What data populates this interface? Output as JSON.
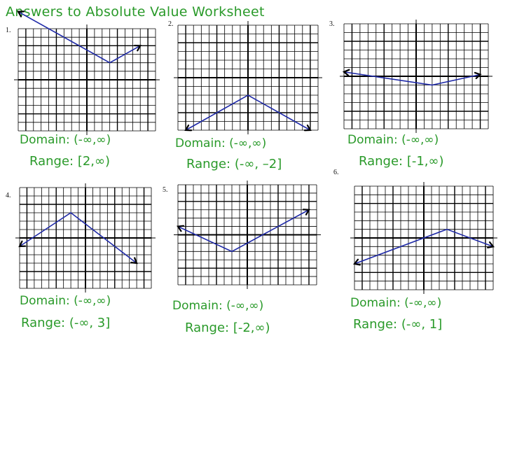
{
  "title": "Answers to Absolute Value Worksheet",
  "problems": [
    {
      "number": "1.",
      "domain": "Domain: (-∞,∞)",
      "range": "Range:  [2,∞)",
      "graph": {
        "xlim": [
          -9,
          9
        ],
        "ylim": [
          -6,
          6
        ],
        "vertex": [
          3,
          2
        ],
        "left": [
          -9,
          8
        ],
        "right": [
          7,
          4
        ],
        "dir": "up"
      }
    },
    {
      "number": "2.",
      "domain": "Domain: (-∞,∞)",
      "range": "Range:  (-∞, –2]",
      "graph": {
        "xlim": [
          -9,
          9
        ],
        "ylim": [
          -6,
          6
        ],
        "vertex": [
          0,
          -2
        ],
        "left": [
          -8,
          -6
        ],
        "right": [
          8,
          -6
        ],
        "dir": "down"
      }
    },
    {
      "number": "3.",
      "domain": "Domain: (-∞,∞)",
      "range": "Range:  [-1,∞)",
      "graph": {
        "xlim": [
          -9,
          9
        ],
        "ylim": [
          -6,
          6
        ],
        "vertex": [
          2,
          -1
        ],
        "left": [
          -9,
          0.5
        ],
        "right": [
          8,
          0.2
        ],
        "dir": "up"
      }
    },
    {
      "number": "4.",
      "domain": "Domain: (-∞,∞)",
      "range": "Range:  (-∞, 3]",
      "graph": {
        "xlim": [
          -9,
          9
        ],
        "ylim": [
          -6,
          6
        ],
        "vertex": [
          -2,
          3
        ],
        "left": [
          -9,
          -1
        ],
        "right": [
          7,
          -3
        ],
        "dir": "down"
      }
    },
    {
      "number": "5.",
      "domain": "Domain: (-∞,∞)",
      "range": "Range:  [-2,∞)",
      "graph": {
        "xlim": [
          -9,
          9
        ],
        "ylim": [
          -6,
          6
        ],
        "vertex": [
          -2,
          -2
        ],
        "left": [
          -9,
          1
        ],
        "right": [
          8,
          3
        ],
        "dir": "up"
      }
    },
    {
      "number": "6.",
      "domain": "Domain: (-∞,∞)",
      "range": "Range:  (-∞, 1]",
      "graph": {
        "xlim": [
          -9,
          9
        ],
        "ylim": [
          -6,
          6
        ],
        "vertex": [
          3,
          1
        ],
        "left": [
          -9,
          -3
        ],
        "right": [
          9,
          -1
        ],
        "dir": "down"
      }
    }
  ]
}
